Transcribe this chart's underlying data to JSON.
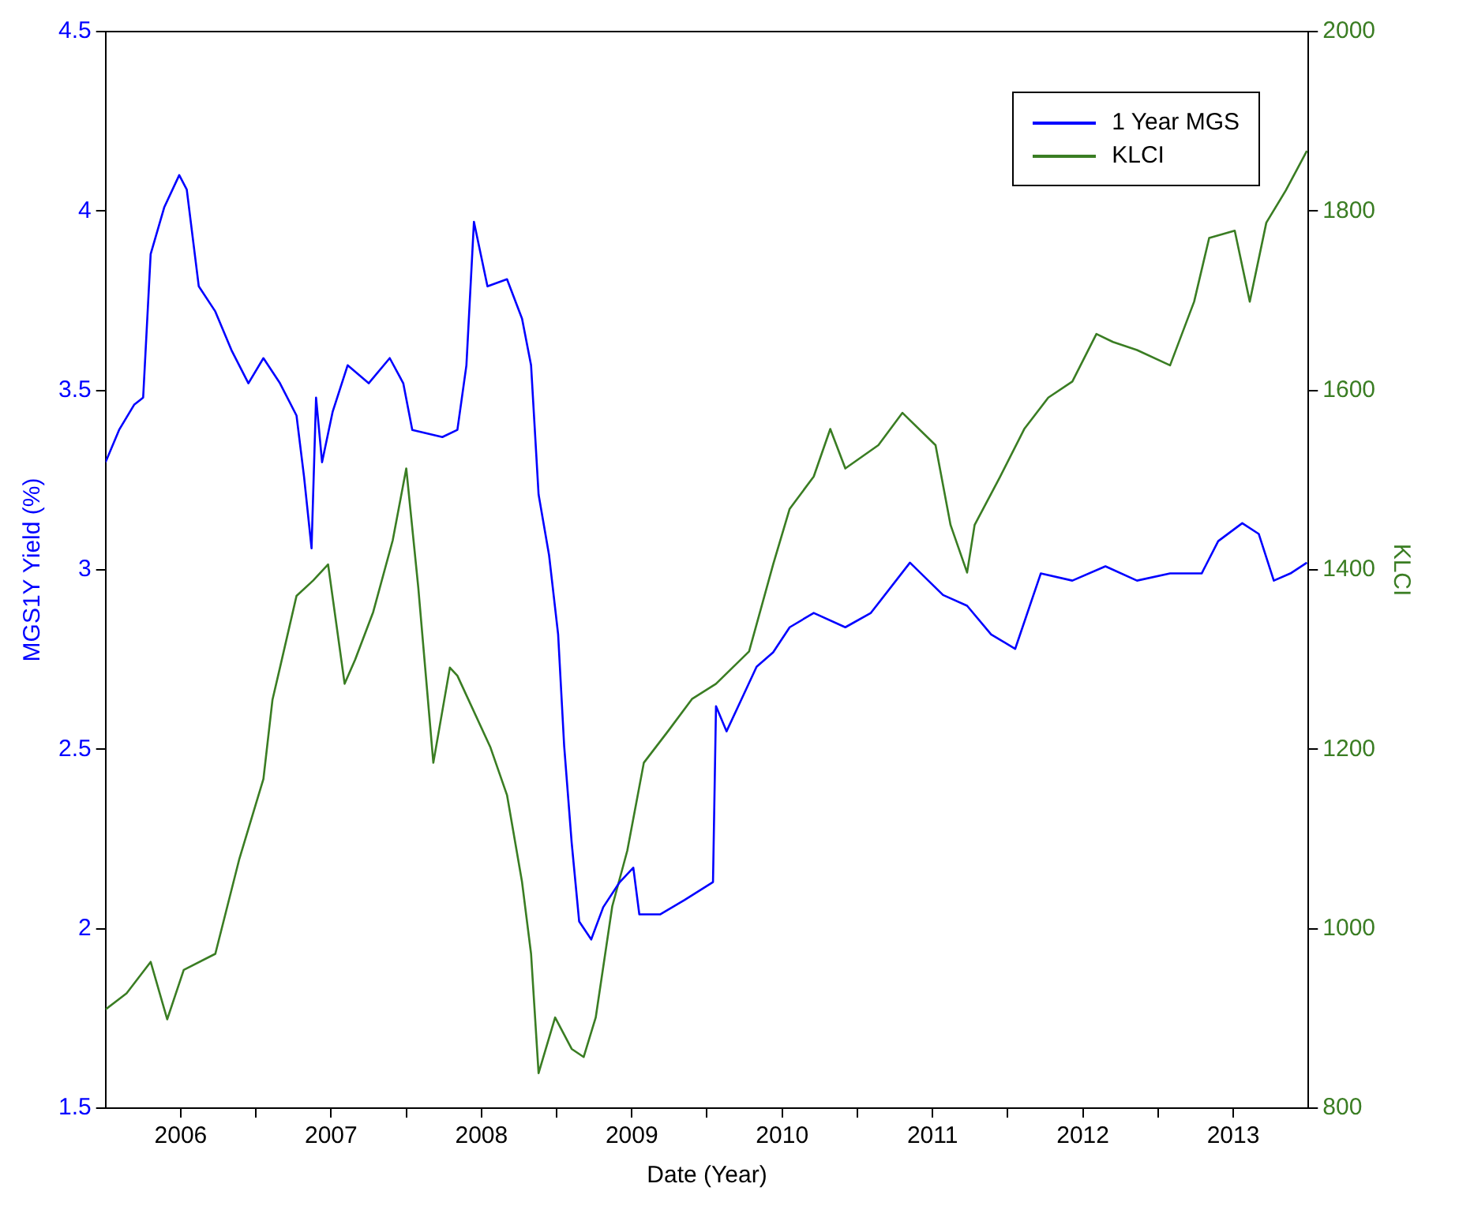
{
  "chart_data": {
    "type": "line",
    "xlabel": "Date (Year)",
    "ylabel": "MGS1Y Yield (%)",
    "y2label": "KLCI",
    "legend": "top right",
    "grid": false,
    "marker": "none",
    "line_style": "solid",
    "xlim": [
      2006,
      2014
    ],
    "xticks": [
      {
        "value": 2006.5,
        "label": "2006"
      },
      {
        "value": 2007,
        "label": null
      },
      {
        "value": 2007.5,
        "label": "2007"
      },
      {
        "value": 2008,
        "label": null
      },
      {
        "value": 2008.5,
        "label": "2008"
      },
      {
        "value": 2009,
        "label": null
      },
      {
        "value": 2009.5,
        "label": "2009"
      },
      {
        "value": 2010,
        "label": null
      },
      {
        "value": 2010.5,
        "label": "2010"
      },
      {
        "value": 2011,
        "label": null
      },
      {
        "value": 2011.5,
        "label": "2011"
      },
      {
        "value": 2012,
        "label": null
      },
      {
        "value": 2012.5,
        "label": "2012"
      },
      {
        "value": 2013,
        "label": null
      },
      {
        "value": 2013.5,
        "label": "2013"
      }
    ],
    "ylim": [
      1.5,
      4.5
    ],
    "yticks": [
      1.5,
      2,
      2.5,
      3,
      3.5,
      4,
      4.5
    ],
    "y2lim": [
      800,
      2000
    ],
    "y2ticks": [
      800,
      1000,
      1200,
      1400,
      1600,
      1800,
      2000
    ],
    "series": [
      {
        "name": "1 Year MGS",
        "color": "#0000ff",
        "x": [
          2006.0,
          2006.09,
          2006.19,
          2006.25,
          2006.3,
          2006.39,
          2006.49,
          2006.54,
          2006.62,
          2006.73,
          2006.84,
          2006.95,
          2007.05,
          2007.16,
          2007.27,
          2007.32,
          2007.37,
          2007.4,
          2007.44,
          2007.51,
          2007.61,
          2007.75,
          2007.89,
          2007.98,
          2008.04,
          2008.24,
          2008.34,
          2008.4,
          2008.45,
          2008.54,
          2008.67,
          2008.77,
          2008.83,
          2008.88,
          2008.95,
          2009.01,
          2009.05,
          2009.1,
          2009.15,
          2009.23,
          2009.31,
          2009.42,
          2009.51,
          2009.55,
          2009.69,
          2009.85,
          2010.04,
          2010.06,
          2010.13,
          2010.23,
          2010.33,
          2010.44,
          2010.55,
          2010.71,
          2010.92,
          2011.09,
          2011.35,
          2011.57,
          2011.73,
          2011.89,
          2012.05,
          2012.22,
          2012.43,
          2012.65,
          2012.86,
          2013.08,
          2013.29,
          2013.4,
          2013.56,
          2013.67,
          2013.77,
          2013.88,
          2013.99
        ],
        "values": [
          3.3,
          3.39,
          3.46,
          3.48,
          3.88,
          4.01,
          4.1,
          4.06,
          3.79,
          3.72,
          3.61,
          3.52,
          3.59,
          3.52,
          3.43,
          3.26,
          3.06,
          3.48,
          3.3,
          3.44,
          3.57,
          3.52,
          3.59,
          3.52,
          3.39,
          3.37,
          3.39,
          3.57,
          3.97,
          3.79,
          3.81,
          3.7,
          3.57,
          3.21,
          3.04,
          2.82,
          2.51,
          2.24,
          2.02,
          1.97,
          2.06,
          2.13,
          2.17,
          2.04,
          2.04,
          2.08,
          2.13,
          2.62,
          2.55,
          2.64,
          2.73,
          2.77,
          2.84,
          2.88,
          2.84,
          2.88,
          3.02,
          2.93,
          2.9,
          2.82,
          2.78,
          2.99,
          2.97,
          3.01,
          2.97,
          2.99,
          2.99,
          3.08,
          3.13,
          3.1,
          2.97,
          2.99,
          3.02
        ]
      },
      {
        "name": "KLCI",
        "color": "#3a7d23",
        "axis": "y2",
        "x": [
          2006.0,
          2006.14,
          2006.3,
          2006.41,
          2006.52,
          2006.73,
          2006.89,
          2007.05,
          2007.11,
          2007.16,
          2007.27,
          2007.38,
          2007.48,
          2007.59,
          2007.66,
          2007.78,
          2007.91,
          2008.0,
          2008.08,
          2008.18,
          2008.29,
          2008.34,
          2008.56,
          2008.67,
          2008.77,
          2008.83,
          2008.88,
          2008.99,
          2009.1,
          2009.18,
          2009.26,
          2009.37,
          2009.47,
          2009.58,
          2009.74,
          2009.9,
          2010.06,
          2010.28,
          2010.44,
          2010.55,
          2010.71,
          2010.82,
          2010.92,
          2011.14,
          2011.3,
          2011.52,
          2011.62,
          2011.73,
          2011.78,
          2011.95,
          2012.11,
          2012.27,
          2012.43,
          2012.59,
          2012.7,
          2012.86,
          2013.08,
          2013.24,
          2013.34,
          2013.51,
          2013.61,
          2013.72,
          2013.85,
          2013.99
        ],
        "values": [
          910,
          928,
          963,
          899,
          954,
          972,
          1078,
          1167,
          1255,
          1291,
          1371,
          1388,
          1406,
          1273,
          1300,
          1353,
          1433,
          1513,
          1380,
          1185,
          1291,
          1282,
          1202,
          1149,
          1052,
          972,
          839,
          901,
          866,
          857,
          901,
          1025,
          1087,
          1185,
          1220,
          1256,
          1273,
          1309,
          1406,
          1468,
          1504,
          1557,
          1513,
          1539,
          1575,
          1539,
          1450,
          1397,
          1450,
          1504,
          1557,
          1592,
          1610,
          1663,
          1654,
          1645,
          1628,
          1699,
          1770,
          1778,
          1699,
          1787,
          1823,
          1867
        ]
      }
    ]
  }
}
